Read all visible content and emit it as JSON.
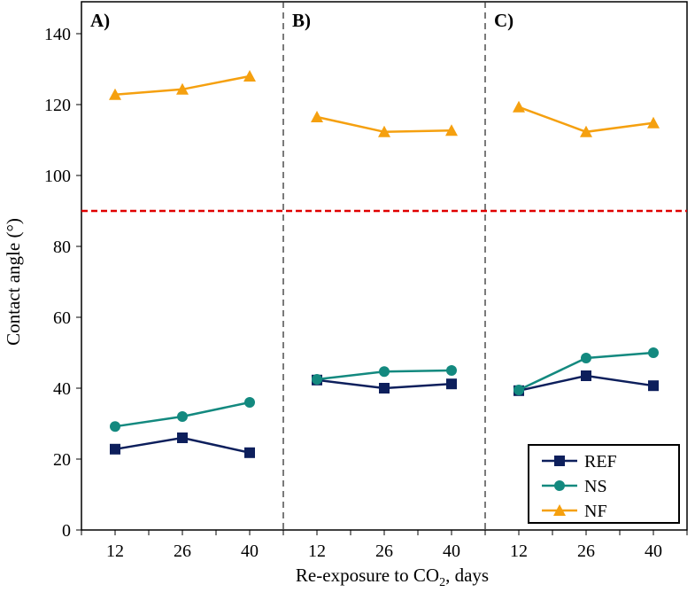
{
  "chart_data": {
    "type": "line",
    "xlabel": "Re-exposure to CO",
    "xlabel_sub": "2",
    "xlabel_suffix": ", days",
    "ylabel": "Contact angle (°)",
    "ylim": [
      0,
      140
    ],
    "yticks": [
      0,
      20,
      40,
      60,
      80,
      100,
      120,
      140
    ],
    "reference_line": {
      "y": 90,
      "color": "#e00000",
      "style": "dashed"
    },
    "legend": {
      "placement": "bottom-right"
    },
    "panels": [
      {
        "label": "A)",
        "categories": [
          "12",
          "26",
          "40"
        ],
        "series": [
          {
            "name": "REF",
            "values": [
              22.8,
              26,
              21.8
            ]
          },
          {
            "name": "NS",
            "values": [
              29.2,
              32,
              36
            ]
          },
          {
            "name": "NF",
            "values": [
              122.8,
              124.3,
              128
            ]
          }
        ]
      },
      {
        "label": "B)",
        "categories": [
          "12",
          "26",
          "40"
        ],
        "series": [
          {
            "name": "REF",
            "values": [
              42.3,
              40,
              41.2
            ]
          },
          {
            "name": "NS",
            "values": [
              42.5,
              44.7,
              45
            ]
          },
          {
            "name": "NF",
            "values": [
              116.5,
              112.3,
              112.7
            ]
          }
        ]
      },
      {
        "label": "C)",
        "categories": [
          "12",
          "26",
          "40"
        ],
        "series": [
          {
            "name": "REF",
            "values": [
              39.3,
              43.5,
              40.7
            ]
          },
          {
            "name": "NS",
            "values": [
              39.5,
              48.5,
              50
            ]
          },
          {
            "name": "NF",
            "values": [
              119.3,
              112.3,
              114.8
            ]
          }
        ]
      }
    ],
    "series_style": [
      {
        "name": "REF",
        "color": "#0d1f5c",
        "marker": "square"
      },
      {
        "name": "NS",
        "color": "#13897f",
        "marker": "circle"
      },
      {
        "name": "NF",
        "color": "#f5a00f",
        "marker": "triangle"
      }
    ]
  }
}
